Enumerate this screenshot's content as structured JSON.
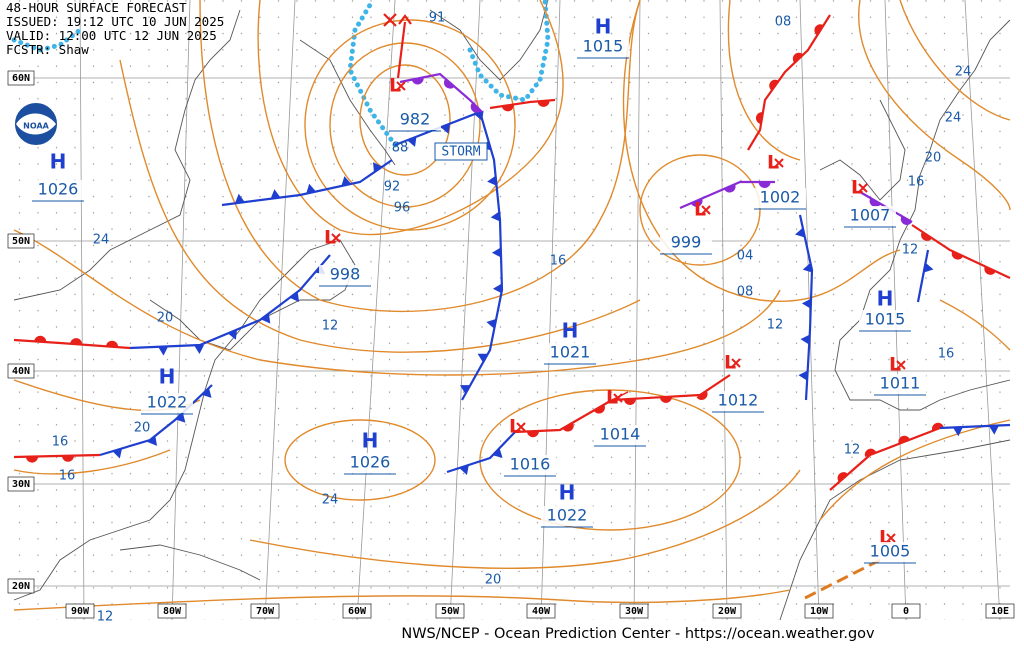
{
  "header": {
    "title": "48-HOUR SURFACE FORECAST",
    "issued": "ISSUED: 19:12 UTC 10 JUN 2025",
    "valid": "VALID:  12:00 UTC 12 JUN 2025",
    "forecaster": "FCSTR:  Shaw"
  },
  "logo_text": "NOAA",
  "latitude_labels": [
    "60N",
    "50N",
    "40N",
    "30N",
    "20N"
  ],
  "longitude_labels": [
    "90W",
    "80W",
    "70W",
    "60W",
    "50W",
    "40W",
    "30W",
    "20W",
    "10W",
    "0",
    "10E"
  ],
  "centers": [
    {
      "symbol": "H",
      "pressure": 1015
    },
    {
      "symbol": "L",
      "pressure": 982
    },
    {
      "symbol": "H",
      "pressure": 1026
    },
    {
      "symbol": "L",
      "pressure": 1002
    },
    {
      "symbol": "L",
      "pressure": 1007
    },
    {
      "symbol": "L",
      "pressure": 999
    },
    {
      "symbol": "L",
      "pressure": 998
    },
    {
      "symbol": "H",
      "pressure": 1015
    },
    {
      "symbol": "H",
      "pressure": 1021
    },
    {
      "symbol": "L",
      "pressure": 1011
    },
    {
      "symbol": "L",
      "pressure": 1012
    },
    {
      "symbol": "H",
      "pressure": 1022
    },
    {
      "symbol": "L",
      "pressure": 1014
    },
    {
      "symbol": "L",
      "pressure": 1016
    },
    {
      "symbol": "H",
      "pressure": 1026
    },
    {
      "symbol": "H",
      "pressure": 1022
    },
    {
      "symbol": "L",
      "pressure": 1005
    }
  ],
  "isobar_labels": [
    "91",
    "08",
    "24",
    "24",
    "20",
    "16",
    "88",
    "92",
    "96",
    "24",
    "12",
    "16",
    "04",
    "08",
    "12",
    "12",
    "20",
    "16",
    "20",
    "16",
    "16",
    "12",
    "24",
    "20",
    "12"
  ],
  "warning": "STORM",
  "footer": "NWS/NCEP - Ocean Prediction Center - https://ocean.weather.gov"
}
